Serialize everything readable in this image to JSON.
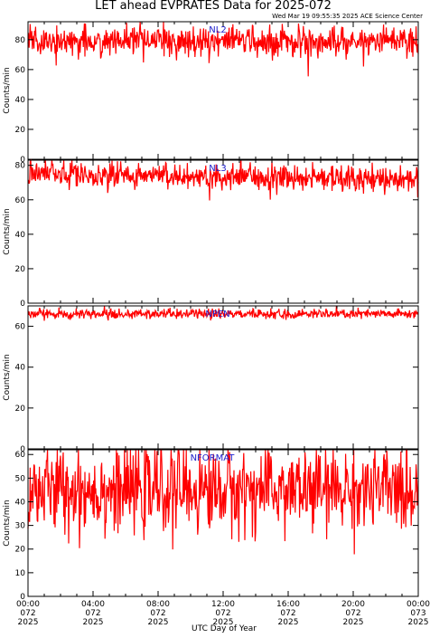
{
  "title": "LET ahead EVPRATES Data for 2025-072",
  "timestamp": "Wed Mar 19 09:55:35 2025 ACE Science Center",
  "xlabel": "UTC Day of Year",
  "colors": {
    "series": "#ff0000",
    "series_label": "#2020cc",
    "axis": "#000000"
  },
  "x_ticks": [
    {
      "time": "00:00",
      "day": "072",
      "year": "2025"
    },
    {
      "time": "04:00",
      "day": "072",
      "year": "2025"
    },
    {
      "time": "08:00",
      "day": "072",
      "year": "2025"
    },
    {
      "time": "12:00",
      "day": "072",
      "year": "2025"
    },
    {
      "time": "16:00",
      "day": "072",
      "year": "2025"
    },
    {
      "time": "20:00",
      "day": "072",
      "year": "2025"
    },
    {
      "time": "00:00",
      "day": "073",
      "year": "2025"
    }
  ],
  "chart_data": [
    {
      "type": "line",
      "series": [
        {
          "name": "NL2",
          "mean": 79,
          "spread": 5
        }
      ],
      "ylabel": "Counts/min",
      "xlim_hours": [
        0,
        24
      ],
      "ylim": [
        0,
        92
      ],
      "yticks": [
        "0",
        "20",
        "40",
        "60",
        "80"
      ],
      "ytick_values": [
        0,
        20,
        40,
        60,
        80
      ]
    },
    {
      "type": "line",
      "series": [
        {
          "name": "NL3",
          "mean_start": 75,
          "mean_end": 72,
          "spread": 4
        }
      ],
      "ylabel": "Counts/min",
      "xlim_hours": [
        0,
        24
      ],
      "ylim": [
        0,
        83
      ],
      "yticks": [
        "0",
        "20",
        "40",
        "60",
        "80"
      ],
      "ytick_values": [
        0,
        20,
        40,
        60,
        80
      ]
    },
    {
      "type": "line",
      "series": [
        {
          "name": "NPEN",
          "mean": 66,
          "spread": 1.2
        }
      ],
      "ylabel": "Counts/min",
      "xlim_hours": [
        0,
        24
      ],
      "ylim": [
        0,
        70
      ],
      "yticks": [
        "0",
        "20",
        "40",
        "60"
      ],
      "ytick_values": [
        0,
        20,
        40,
        60
      ]
    },
    {
      "type": "line",
      "series": [
        {
          "name": "NFORMAT",
          "mean": 45,
          "spread": 9
        }
      ],
      "ylabel": "Counts/min",
      "xlim_hours": [
        0,
        24
      ],
      "ylim": [
        0,
        62
      ],
      "yticks": [
        "0",
        "10",
        "20",
        "30",
        "40",
        "50",
        "60"
      ],
      "ytick_values": [
        0,
        10,
        20,
        30,
        40,
        50,
        60
      ]
    }
  ]
}
